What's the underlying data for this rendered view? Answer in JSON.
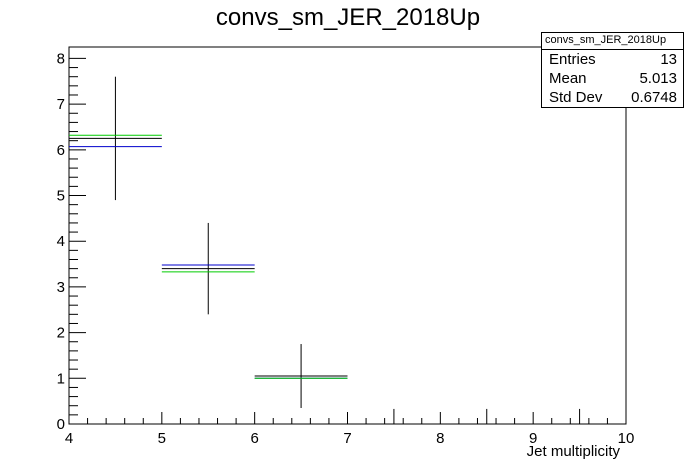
{
  "title": "convs_sm_JER_2018Up",
  "stats": {
    "name": "convs_sm_JER_2018Up",
    "rows": [
      {
        "label": "Entries",
        "value": "13"
      },
      {
        "label": "Mean",
        "value": "5.013"
      },
      {
        "label": "Std Dev",
        "value": "0.6748"
      }
    ]
  },
  "colors": {
    "data": "#000000",
    "blue": "#0000cc",
    "green": "#00cc00"
  },
  "chart_data": {
    "type": "histogram",
    "title": "convs_sm_JER_2018Up",
    "xlabel": "Jet multiplicity",
    "ylabel": "",
    "xlim": [
      4,
      10
    ],
    "ylim": [
      0,
      8.25
    ],
    "x_ticks": [
      "4",
      "5",
      "6",
      "7",
      "8",
      "9",
      "10"
    ],
    "y_ticks": [
      "0",
      "1",
      "2",
      "3",
      "4",
      "5",
      "6",
      "7",
      "8"
    ],
    "bin_edges": [
      4,
      5,
      6,
      7,
      8,
      9,
      10
    ],
    "series": [
      {
        "color": "#000000",
        "values": [
          6.25,
          3.4,
          1.05,
          0,
          0,
          0
        ],
        "errors": [
          1.35,
          1.0,
          0.7,
          0,
          0,
          0
        ]
      },
      {
        "color": "#0000cc",
        "values": [
          6.07,
          3.48,
          1.0,
          0,
          0,
          0
        ]
      },
      {
        "color": "#00cc00",
        "values": [
          6.32,
          3.33,
          1.0,
          0,
          0,
          0
        ]
      }
    ]
  }
}
